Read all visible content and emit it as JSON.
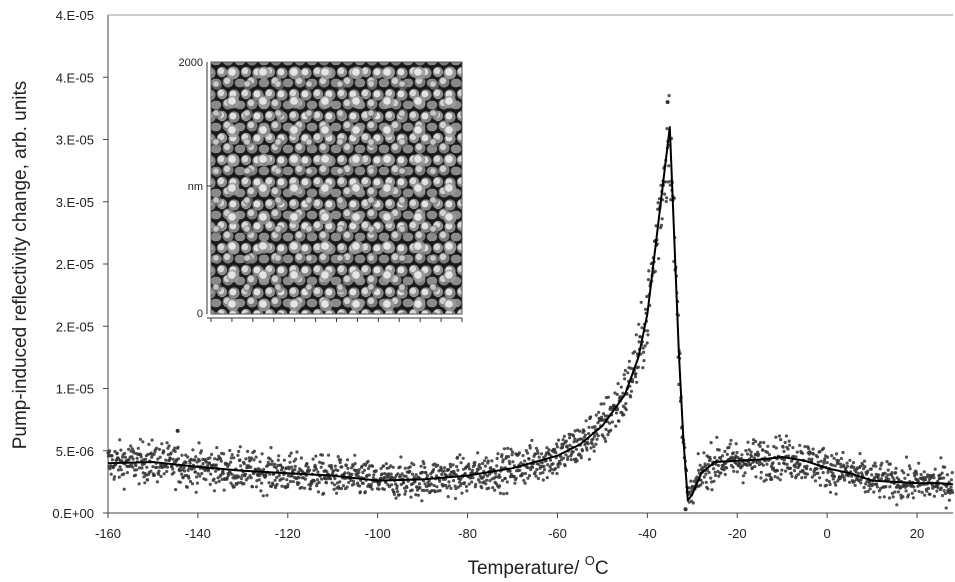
{
  "chart_data": {
    "type": "scatter",
    "xlabel_main": "Temperature/ ",
    "xlabel_sup": "O",
    "xlabel_tail": "C",
    "ylabel": "Pump-induced reflectivity change, arb. units",
    "xlim": [
      -160,
      28
    ],
    "ylim": [
      0,
      4e-05
    ],
    "x_ticks": [
      -160,
      -140,
      -120,
      -100,
      -80,
      -60,
      -40,
      -20,
      0,
      20
    ],
    "y_ticks": [
      {
        "value": 0.0,
        "label": "0.E+00"
      },
      {
        "value": 5e-06,
        "label": "5.E-06"
      },
      {
        "value": 1e-05,
        "label": "1.E-05"
      },
      {
        "value": 1.5e-05,
        "label": "2.E-05"
      },
      {
        "value": 2e-05,
        "label": "2.E-05"
      },
      {
        "value": 2.5e-05,
        "label": "3.E-05"
      },
      {
        "value": 3e-05,
        "label": "3.E-05"
      },
      {
        "value": 3.5e-05,
        "label": "4.E-05"
      }
    ],
    "grid": false,
    "series": [
      {
        "kind": "line",
        "color": "#000000",
        "x": [
          -160,
          -150,
          -140,
          -130,
          -120,
          -110,
          -100,
          -90,
          -80,
          -70,
          -60,
          -55,
          -50,
          -45,
          -42,
          -40,
          -38,
          -36,
          -35,
          -34,
          -33,
          -32,
          -31,
          -30,
          -28,
          -25,
          -20,
          -15,
          -10,
          -5,
          0,
          5,
          10,
          15,
          20,
          25,
          28
        ],
        "y": [
          4e-06,
          4.1e-06,
          3.7e-06,
          3.4e-06,
          3.2e-06,
          3e-06,
          2.6e-06,
          2.7e-06,
          3e-06,
          3.6e-06,
          4.6e-06,
          5.5e-06,
          7e-06,
          9.5e-06,
          1.25e-05,
          1.6e-05,
          2.2e-05,
          2.8e-05,
          3.1e-05,
          2.2e-05,
          1.3e-05,
          6e-06,
          1e-06,
          1.5e-06,
          3.2e-06,
          4.1e-06,
          4.2e-06,
          4.3e-06,
          4.5e-06,
          4.2e-06,
          3.6e-06,
          3.2e-06,
          2.6e-06,
          2.5e-06,
          2.4e-06,
          2.4e-06,
          2.3e-06
        ]
      },
      {
        "kind": "scatter",
        "color": "#333333",
        "noise": 6e-07,
        "outliers": [
          {
            "x": -144.5,
            "y": 6.6e-06
          },
          {
            "x": -35.5,
            "y": 3.3e-05
          },
          {
            "x": -31.5,
            "y": 3e-07
          }
        ]
      }
    ],
    "inset": {
      "description_type": "afm-image",
      "y_tick_labels": [
        "2000",
        "nm",
        "0"
      ]
    }
  }
}
